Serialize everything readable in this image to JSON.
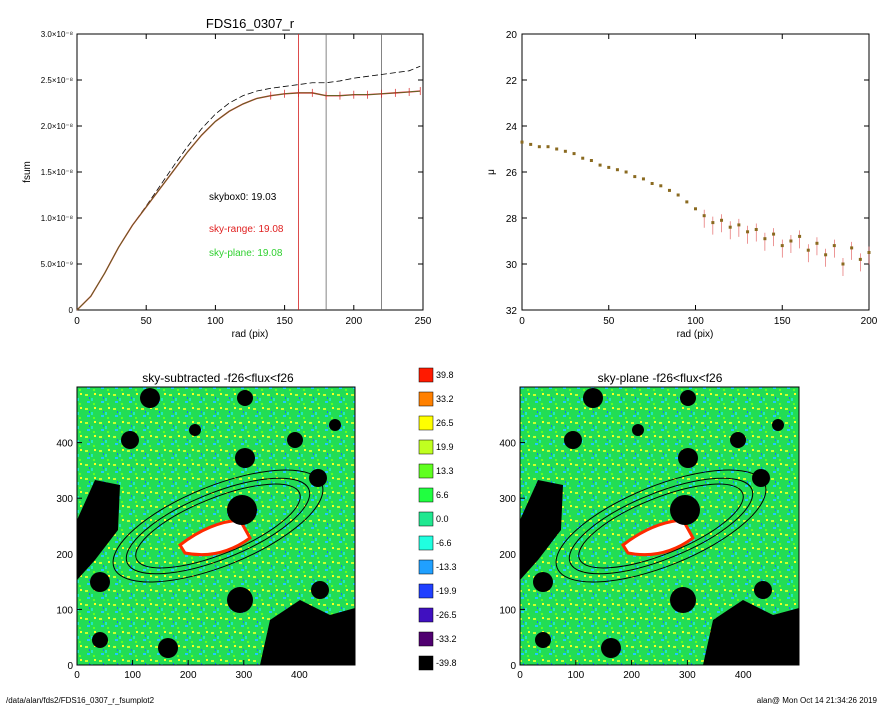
{
  "colors": {
    "obs": "#d42020",
    "model": "#2a8a2a",
    "sky_range": "#e02020",
    "sky_plane": "#30d030",
    "bg_map": "#22dd55",
    "masked": "#000000"
  },
  "panels": {
    "fsum": {
      "title": "FDS16_0307_r",
      "xlabel": "rad (pix)",
      "ylabel": "fsum",
      "ytick_labels": [
        "0",
        "5.0×10⁻⁹",
        "1.0×10⁻⁸",
        "1.5×10⁻⁸",
        "2.0×10⁻⁸",
        "2.5×10⁻⁸",
        "3.0×10⁻⁸"
      ],
      "xtick_labels": [
        "0",
        "50",
        "100",
        "150",
        "200",
        "250"
      ],
      "annotations": [
        {
          "text": "skybox0: 19.03",
          "color": "#000000"
        },
        {
          "text": "sky-range: 19.08",
          "color": "#e02020"
        },
        {
          "text": "sky-plane: 19.08",
          "color": "#30d030"
        }
      ]
    },
    "mu": {
      "xlabel": "rad (pix)",
      "ylabel": "μ",
      "ytick_labels": [
        "20",
        "22",
        "24",
        "26",
        "28",
        "30",
        "32"
      ],
      "xtick_labels": [
        "0",
        "50",
        "100",
        "150",
        "200"
      ]
    },
    "map_left": {
      "title": "sky-subtracted -f26<flux<f26",
      "xtick_labels": [
        "0",
        "100",
        "200",
        "300",
        "400"
      ],
      "ytick_labels": [
        "0",
        "100",
        "200",
        "300",
        "400"
      ]
    },
    "map_right": {
      "title": "sky-plane -f26<flux<f26",
      "xtick_labels": [
        "0",
        "100",
        "200",
        "300",
        "400"
      ],
      "ytick_labels": [
        "0",
        "100",
        "200",
        "300",
        "400"
      ]
    },
    "colorbar": {
      "labels": [
        "39.8",
        "33.2",
        "26.5",
        "19.9",
        "13.3",
        "6.6",
        "0.0",
        "-6.6",
        "-13.3",
        "-19.9",
        "-26.5",
        "-33.2",
        "-39.8"
      ],
      "colors": [
        "#ff1a00",
        "#ff8000",
        "#ffff00",
        "#c0ff20",
        "#60ff20",
        "#20ff40",
        "#20e890",
        "#20ffe0",
        "#20a0ff",
        "#2040ff",
        "#4010c0",
        "#500070",
        "#000000"
      ]
    }
  },
  "footer": {
    "left": "/data/alan/fds2/FDS16_0307_r_fsumplot2",
    "right": "alan@  Mon Oct 14 21:34:26 2019"
  },
  "chart_data": [
    {
      "type": "line",
      "title": "FDS16_0307_r",
      "xlabel": "rad (pix)",
      "ylabel": "fsum",
      "xlim": [
        0,
        250
      ],
      "ylim": [
        0,
        3e-08
      ],
      "vlines": [
        160,
        180,
        220
      ],
      "series": [
        {
          "x": [
            0,
            10,
            20,
            30,
            40,
            50,
            60,
            70,
            80,
            90,
            100,
            110,
            120,
            130,
            140,
            150,
            160,
            170,
            180,
            190,
            200,
            210,
            220,
            230,
            240,
            248
          ],
          "values": [
            0,
            1.5e-09,
            4e-09,
            6.8e-09,
            9.2e-09,
            1.12e-08,
            1.32e-08,
            1.52e-08,
            1.72e-08,
            1.9e-08,
            2.05e-08,
            2.16e-08,
            2.24e-08,
            2.3e-08,
            2.33e-08,
            2.35e-08,
            2.36e-08,
            2.36e-08,
            2.33e-08,
            2.33e-08,
            2.34e-08,
            2.34e-08,
            2.35e-08,
            2.36e-08,
            2.37e-08,
            2.38e-08
          ]
        },
        {
          "x": [
            0,
            10,
            20,
            30,
            40,
            50,
            60,
            70,
            80,
            90,
            100,
            110,
            120,
            130,
            140,
            150,
            160,
            170,
            180,
            190,
            200,
            210,
            220,
            230,
            240,
            248
          ],
          "values": [
            0,
            1.5e-09,
            4e-09,
            6.8e-09,
            9.2e-09,
            1.13e-08,
            1.35e-08,
            1.57e-08,
            1.78e-08,
            1.97e-08,
            2.13e-08,
            2.25e-08,
            2.33e-08,
            2.38e-08,
            2.41e-08,
            2.43e-08,
            2.45e-08,
            2.47e-08,
            2.47e-08,
            2.49e-08,
            2.52e-08,
            2.54e-08,
            2.56e-08,
            2.58e-08,
            2.6e-08,
            2.65e-08
          ]
        }
      ]
    },
    {
      "type": "scatter",
      "xlabel": "rad (pix)",
      "ylabel": "μ",
      "xlim": [
        0,
        200
      ],
      "ylim": [
        32,
        20
      ],
      "x": [
        0,
        5,
        10,
        15,
        20,
        25,
        30,
        35,
        40,
        45,
        50,
        55,
        60,
        65,
        70,
        75,
        80,
        85,
        90,
        95,
        100,
        105,
        110,
        115,
        120,
        125,
        130,
        135,
        140,
        145,
        150,
        155,
        160,
        165,
        170,
        175,
        180,
        185,
        190,
        195,
        200
      ],
      "values": [
        24.7,
        24.8,
        24.9,
        24.9,
        25.0,
        25.1,
        25.2,
        25.4,
        25.5,
        25.7,
        25.8,
        25.9,
        26.0,
        26.2,
        26.3,
        26.5,
        26.6,
        26.8,
        27.0,
        27.3,
        27.6,
        27.9,
        28.2,
        28.1,
        28.4,
        28.3,
        28.6,
        28.5,
        28.9,
        28.7,
        29.2,
        29.0,
        28.8,
        29.4,
        29.1,
        29.6,
        29.2,
        30.0,
        29.3,
        29.8,
        29.5
      ]
    }
  ]
}
